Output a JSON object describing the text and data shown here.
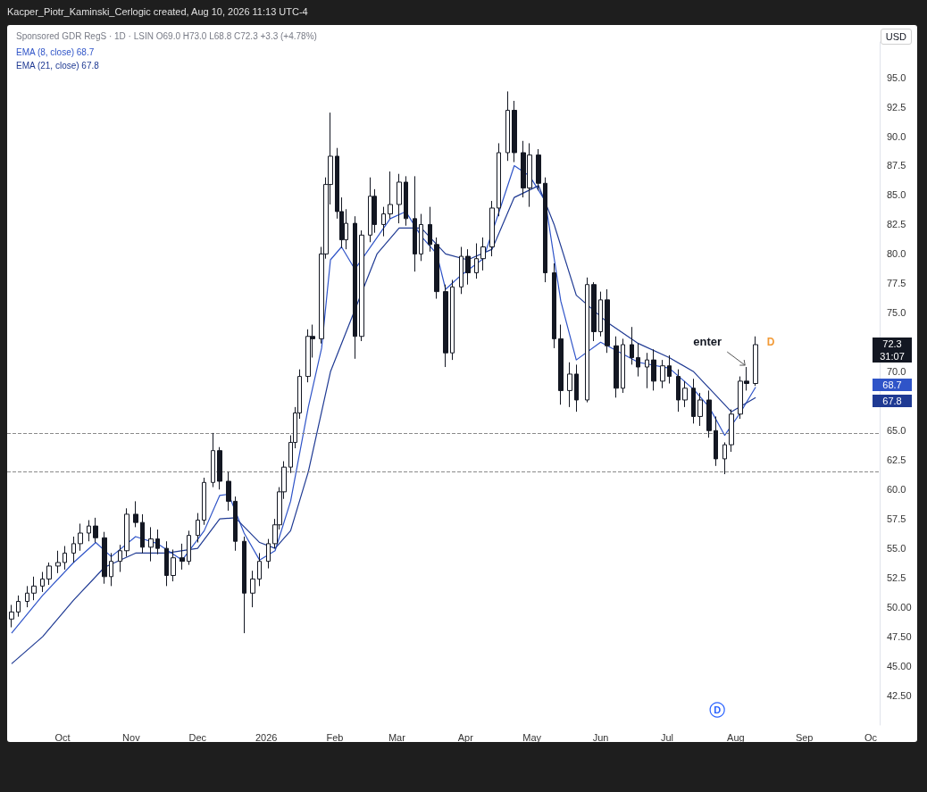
{
  "chart_data": {
    "type": "candlestick",
    "title": "Kacper_Piotr_Kaminski_Cerlogic created, Aug 10, 2026 11:13 UTC-4",
    "subtitle": "Sponsored GDR RegS · 1D · LSIN  O69.0 H73.0 L68.8 C72.3 +3.3 (+4.78%)",
    "ylabel": "USD",
    "color": "#131722",
    "x": [
      "2025-09-08",
      "2025-09-11",
      "2025-09-15",
      "2025-09-18",
      "2025-09-22",
      "2025-09-25",
      "2025-09-29",
      "2025-10-02",
      "2025-10-06",
      "2025-10-09",
      "2025-10-13",
      "2025-10-16",
      "2025-10-20",
      "2025-10-23",
      "2025-10-27",
      "2025-10-30",
      "2025-11-03",
      "2025-11-06",
      "2025-11-10",
      "2025-11-13",
      "2025-11-17",
      "2025-11-20",
      "2025-11-24",
      "2025-11-27",
      "2025-12-01",
      "2025-12-04",
      "2025-12-08",
      "2025-12-11",
      "2025-12-15",
      "2025-12-18",
      "2025-12-22",
      "2025-12-26",
      "2025-12-29",
      "2026-01-02",
      "2026-01-05",
      "2026-01-07",
      "2026-01-09",
      "2026-01-12",
      "2026-01-14",
      "2026-01-16",
      "2026-01-20",
      "2026-01-22",
      "2026-01-26",
      "2026-01-28",
      "2026-01-30",
      "2026-02-02",
      "2026-02-04",
      "2026-02-06",
      "2026-02-10",
      "2026-02-13",
      "2026-02-17",
      "2026-02-19",
      "2026-02-23",
      "2026-02-26",
      "2026-03-02",
      "2026-03-05",
      "2026-03-09",
      "2026-03-12",
      "2026-03-16",
      "2026-03-19",
      "2026-03-23",
      "2026-03-26",
      "2026-03-30",
      "2026-04-02",
      "2026-04-06",
      "2026-04-09",
      "2026-04-13",
      "2026-04-16",
      "2026-04-20",
      "2026-04-23",
      "2026-04-27",
      "2026-04-30",
      "2026-05-04",
      "2026-05-07",
      "2026-05-11",
      "2026-05-14",
      "2026-05-18",
      "2026-05-21",
      "2026-05-26",
      "2026-05-29",
      "2026-06-01",
      "2026-06-04",
      "2026-06-08",
      "2026-06-11",
      "2026-06-15",
      "2026-06-18",
      "2026-06-22",
      "2026-06-25",
      "2026-06-29",
      "2026-07-02",
      "2026-07-06",
      "2026-07-09",
      "2026-07-13",
      "2026-07-16",
      "2026-07-20",
      "2026-07-23",
      "2026-07-27",
      "2026-07-30",
      "2026-08-03",
      "2026-08-06",
      "2026-08-10"
    ],
    "ohlc": [
      [
        49.0,
        50.2,
        48.3,
        49.6
      ],
      [
        49.6,
        51.0,
        49.2,
        50.5
      ],
      [
        50.5,
        51.8,
        50.0,
        51.2
      ],
      [
        51.2,
        52.6,
        50.6,
        51.8
      ],
      [
        51.8,
        53.0,
        51.3,
        52.4
      ],
      [
        52.4,
        53.8,
        51.9,
        53.5
      ],
      [
        53.5,
        54.8,
        52.9,
        53.8
      ],
      [
        53.8,
        55.2,
        53.2,
        54.6
      ],
      [
        54.6,
        56.0,
        53.8,
        55.4
      ],
      [
        55.4,
        57.1,
        54.8,
        56.3
      ],
      [
        56.3,
        57.4,
        55.6,
        56.9
      ],
      [
        56.9,
        57.6,
        55.5,
        55.9
      ],
      [
        55.9,
        56.4,
        52.0,
        52.6
      ],
      [
        52.6,
        54.6,
        51.8,
        53.9
      ],
      [
        53.9,
        55.3,
        53.0,
        54.8
      ],
      [
        54.8,
        58.4,
        54.3,
        57.9
      ],
      [
        57.9,
        59.0,
        56.8,
        57.2
      ],
      [
        57.2,
        57.9,
        54.6,
        55.1
      ],
      [
        55.1,
        56.8,
        53.9,
        55.8
      ],
      [
        55.8,
        56.6,
        54.5,
        55.0
      ],
      [
        55.0,
        55.6,
        51.8,
        52.7
      ],
      [
        52.7,
        54.9,
        52.2,
        54.2
      ],
      [
        54.2,
        55.4,
        53.2,
        53.9
      ],
      [
        53.9,
        56.5,
        53.6,
        56.1
      ],
      [
        56.1,
        58.0,
        55.5,
        57.4
      ],
      [
        57.4,
        61.0,
        57.0,
        60.6
      ],
      [
        60.6,
        64.8,
        60.2,
        63.3
      ],
      [
        63.3,
        63.6,
        60.0,
        60.7
      ],
      [
        60.7,
        61.5,
        58.2,
        59.0
      ],
      [
        59.0,
        59.4,
        54.8,
        55.6
      ],
      [
        55.6,
        56.0,
        47.8,
        51.2
      ],
      [
        51.2,
        53.1,
        50.0,
        52.4
      ],
      [
        52.4,
        54.6,
        51.8,
        53.9
      ],
      [
        53.9,
        55.8,
        53.3,
        55.4
      ],
      [
        55.4,
        57.5,
        55.0,
        57.0
      ],
      [
        57.0,
        60.2,
        56.6,
        59.8
      ],
      [
        59.8,
        62.4,
        59.2,
        61.9
      ],
      [
        61.9,
        64.6,
        61.4,
        64.0
      ],
      [
        64.0,
        67.0,
        63.5,
        66.5
      ],
      [
        66.5,
        70.2,
        66.0,
        69.6
      ],
      [
        69.6,
        73.6,
        69.1,
        73.0
      ],
      [
        73.0,
        74.0,
        71.2,
        72.8
      ],
      [
        72.8,
        80.6,
        72.4,
        80.0
      ],
      [
        80.0,
        86.5,
        79.6,
        85.9
      ],
      [
        85.9,
        92.0,
        84.2,
        88.3
      ],
      [
        88.3,
        89.0,
        83.0,
        83.6
      ],
      [
        83.6,
        84.8,
        80.5,
        81.2
      ],
      [
        81.2,
        83.8,
        80.4,
        82.6
      ],
      [
        82.6,
        83.2,
        71.1,
        73.0
      ],
      [
        73.0,
        82.0,
        72.6,
        81.6
      ],
      [
        81.6,
        86.5,
        81.0,
        84.9
      ],
      [
        84.9,
        85.5,
        81.8,
        82.5
      ],
      [
        82.5,
        84.0,
        81.5,
        83.4
      ],
      [
        83.4,
        87.0,
        83.0,
        84.2
      ],
      [
        84.2,
        86.8,
        82.6,
        86.1
      ],
      [
        86.1,
        86.6,
        82.4,
        83.0
      ],
      [
        83.0,
        86.6,
        78.5,
        80.0
      ],
      [
        80.0,
        83.4,
        79.4,
        82.5
      ],
      [
        82.5,
        84.0,
        80.2,
        80.8
      ],
      [
        80.8,
        81.4,
        76.2,
        76.8
      ],
      [
        76.8,
        77.4,
        70.4,
        71.6
      ],
      [
        71.6,
        77.8,
        71.0,
        77.2
      ],
      [
        77.2,
        80.6,
        76.6,
        79.8
      ],
      [
        79.8,
        80.4,
        77.4,
        78.4
      ],
      [
        78.4,
        80.9,
        77.9,
        79.6
      ],
      [
        79.6,
        81.4,
        78.6,
        80.6
      ],
      [
        80.6,
        84.5,
        79.8,
        83.9
      ],
      [
        83.9,
        89.4,
        83.2,
        88.6
      ],
      [
        88.6,
        93.8,
        87.9,
        92.2
      ],
      [
        92.2,
        93.0,
        87.8,
        88.6
      ],
      [
        88.6,
        89.6,
        84.8,
        85.6
      ],
      [
        85.6,
        89.4,
        84.0,
        88.4
      ],
      [
        88.4,
        88.9,
        85.4,
        86.0
      ],
      [
        86.0,
        86.5,
        77.6,
        78.4
      ],
      [
        78.4,
        79.2,
        72.0,
        72.8
      ],
      [
        72.8,
        74.0,
        67.2,
        68.4
      ],
      [
        68.4,
        70.8,
        67.0,
        69.8
      ],
      [
        69.8,
        70.6,
        66.6,
        67.6
      ],
      [
        67.6,
        78.0,
        67.4,
        77.4
      ],
      [
        77.4,
        77.6,
        72.6,
        73.4
      ],
      [
        73.4,
        76.8,
        73.0,
        76.1
      ],
      [
        76.1,
        77.0,
        71.6,
        72.2
      ],
      [
        72.2,
        73.0,
        67.8,
        68.6
      ],
      [
        68.6,
        72.8,
        68.2,
        72.3
      ],
      [
        72.3,
        73.8,
        70.6,
        71.2
      ],
      [
        71.2,
        72.4,
        69.6,
        70.4
      ],
      [
        70.4,
        71.6,
        68.6,
        71.0
      ],
      [
        71.0,
        71.9,
        68.4,
        69.2
      ],
      [
        69.2,
        71.0,
        68.6,
        70.5
      ],
      [
        70.5,
        71.4,
        69.0,
        69.6
      ],
      [
        69.6,
        70.2,
        66.6,
        67.6
      ],
      [
        67.6,
        69.2,
        67.0,
        68.6
      ],
      [
        68.6,
        69.4,
        65.6,
        66.2
      ],
      [
        66.2,
        68.2,
        65.4,
        67.6
      ],
      [
        67.6,
        68.4,
        64.4,
        65.0
      ],
      [
        65.0,
        66.2,
        62.0,
        62.6
      ],
      [
        62.6,
        64.0,
        61.3,
        63.8
      ],
      [
        63.8,
        66.8,
        63.2,
        66.4
      ],
      [
        66.4,
        69.6,
        66.0,
        69.2
      ],
      [
        69.2,
        70.4,
        68.4,
        69.0
      ],
      [
        69.0,
        73.0,
        68.8,
        72.3
      ]
    ],
    "series": [
      {
        "name": "EMA (8, close)",
        "type": "line",
        "color": "#2f54c8",
        "x": [
          "2025-09-08",
          "2025-09-22",
          "2025-10-06",
          "2025-10-16",
          "2025-10-23",
          "2025-11-03",
          "2025-11-13",
          "2025-11-24",
          "2025-12-04",
          "2025-12-11",
          "2025-12-15",
          "2025-12-22",
          "2025-12-29",
          "2026-01-05",
          "2026-01-12",
          "2026-01-20",
          "2026-01-26",
          "2026-01-30",
          "2026-02-04",
          "2026-02-10",
          "2026-02-17",
          "2026-02-26",
          "2026-03-05",
          "2026-03-12",
          "2026-03-19",
          "2026-03-23",
          "2026-03-30",
          "2026-04-09",
          "2026-04-16",
          "2026-04-23",
          "2026-04-30",
          "2026-05-07",
          "2026-05-14",
          "2026-05-21",
          "2026-06-01",
          "2026-06-08",
          "2026-06-18",
          "2026-07-02",
          "2026-07-13",
          "2026-07-20",
          "2026-07-27",
          "2026-08-03",
          "2026-08-10"
        ],
        "values": [
          47.8,
          51.0,
          53.8,
          55.5,
          54.3,
          56.0,
          55.4,
          54.0,
          56.5,
          59.5,
          59.6,
          56.3,
          54.0,
          54.8,
          59.0,
          67.0,
          72.0,
          79.5,
          80.6,
          78.7,
          null,
          83.0,
          83.6,
          81.5,
          80.0,
          77.0,
          78.2,
          79.6,
          83.5,
          87.5,
          86.6,
          84.5,
          76.0,
          71.0,
          72.5,
          71.8,
          70.8,
          70.3,
          68.5,
          67.0,
          64.6,
          66.5,
          68.7
        ]
      },
      {
        "name": "EMA (21, close)",
        "type": "line",
        "color": "#1f3a93",
        "x": [
          "2025-09-08",
          "2025-09-22",
          "2025-10-06",
          "2025-10-20",
          "2025-11-03",
          "2025-11-17",
          "2025-12-01",
          "2025-12-11",
          "2025-12-18",
          "2025-12-29",
          "2026-01-05",
          "2026-01-12",
          "2026-01-20",
          "2026-01-30",
          "2026-02-10",
          "2026-02-20",
          "2026-03-02",
          "2026-03-12",
          "2026-03-23",
          "2026-04-02",
          "2026-04-13",
          "2026-04-23",
          "2026-05-04",
          "2026-05-11",
          "2026-05-21",
          "2026-06-04",
          "2026-06-18",
          "2026-07-02",
          "2026-07-13",
          "2026-07-23",
          "2026-07-30",
          "2026-08-10"
        ],
        "values": [
          45.2,
          47.5,
          50.6,
          53.4,
          54.6,
          54.6,
          55.0,
          57.5,
          57.6,
          55.5,
          55.0,
          56.5,
          61.5,
          70.0,
          null,
          80.0,
          82.2,
          82.2,
          80.0,
          79.5,
          80.4,
          84.8,
          85.8,
          82.5,
          76.5,
          74.2,
          72.4,
          71.2,
          70.0,
          68.0,
          66.6,
          67.8
        ]
      }
    ],
    "xlim": [
      "2025-09-06",
      "2026-10-05"
    ],
    "xticks": [
      {
        "value": "2025-10-01",
        "label": "Oct"
      },
      {
        "value": "2025-11-01",
        "label": "Nov"
      },
      {
        "value": "2025-12-01",
        "label": "Dec"
      },
      {
        "value": "2026-01-01",
        "label": "2026"
      },
      {
        "value": "2026-02-01",
        "label": "Feb"
      },
      {
        "value": "2026-03-01",
        "label": "Mar"
      },
      {
        "value": "2026-04-01",
        "label": "Apr"
      },
      {
        "value": "2026-05-01",
        "label": "May"
      },
      {
        "value": "2026-06-01",
        "label": "Jun"
      },
      {
        "value": "2026-07-01",
        "label": "Jul"
      },
      {
        "value": "2026-08-01",
        "label": "Aug"
      },
      {
        "value": "2026-09-01",
        "label": "Sep"
      },
      {
        "value": "2026-10-01",
        "label": "Oc"
      }
    ],
    "ylim": [
      40,
      98
    ],
    "yticks": [
      {
        "value": 42.5,
        "label": "42.50"
      },
      {
        "value": 45,
        "label": "45.00"
      },
      {
        "value": 47.5,
        "label": "47.50"
      },
      {
        "value": 50,
        "label": "50.00"
      },
      {
        "value": 52.5,
        "label": "52.5"
      },
      {
        "value": 55,
        "label": "55.0"
      },
      {
        "value": 57.5,
        "label": "57.5"
      },
      {
        "value": 60,
        "label": "60.0"
      },
      {
        "value": 62.5,
        "label": "62.5"
      },
      {
        "value": 65,
        "label": "65.0"
      },
      {
        "value": 70,
        "label": "70.0"
      },
      {
        "value": 75,
        "label": "75.0"
      },
      {
        "value": 77.5,
        "label": "77.5"
      },
      {
        "value": 80,
        "label": "80.0"
      },
      {
        "value": 82.5,
        "label": "82.5"
      },
      {
        "value": 85,
        "label": "85.0"
      },
      {
        "value": 87.5,
        "label": "87.5"
      },
      {
        "value": 90,
        "label": "90.0"
      },
      {
        "value": 92.5,
        "label": "92.5"
      },
      {
        "value": 95,
        "label": "95.0"
      }
    ],
    "ref_lines": [
      {
        "axis": "y",
        "value": 64.8,
        "color": "#8a8a8a",
        "line_style": "dashed"
      },
      {
        "axis": "y",
        "value": 61.5,
        "color": "#8a8a8a",
        "line_style": "dashed"
      }
    ],
    "annotations": [
      "31:07",
      {
        "text": "enter",
        "x": "2026-08-06",
        "y": 70.4
      },
      "D",
      "D",
      "72.3",
      "68.7",
      "67.8",
      "68.7",
      "67.8"
    ],
    "legend": "top left",
    "grid": false
  }
}
